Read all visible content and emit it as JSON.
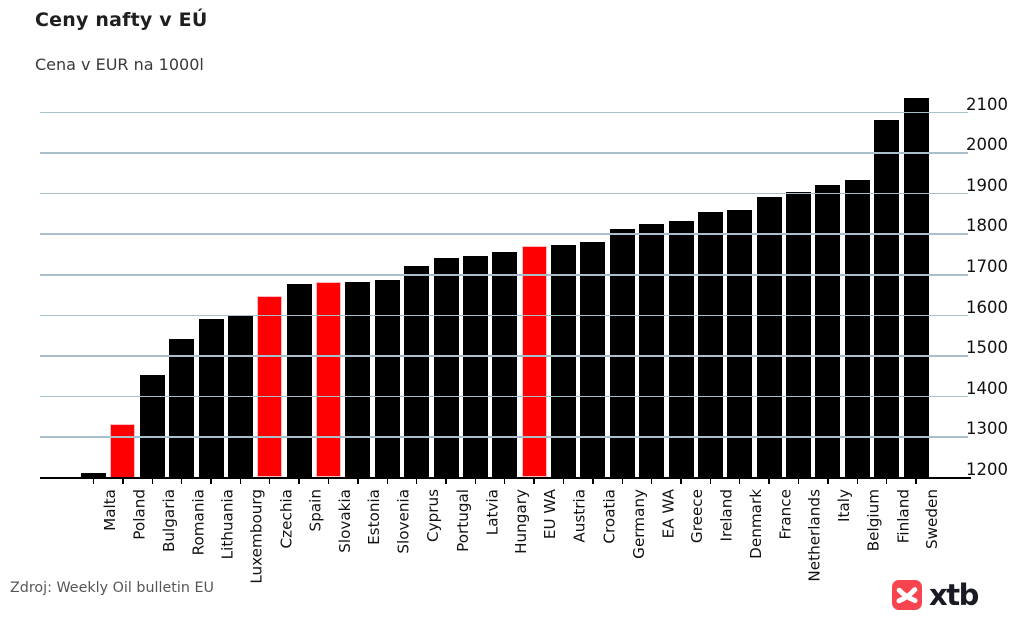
{
  "page": {
    "title": "Ceny nafty v EÚ",
    "subtitle": "Cena v EUR na 1000l",
    "source": "Zdroj: Weekly Oil bulletin EU",
    "brand": "xtb"
  },
  "colors": {
    "bar": "#000000",
    "highlight_bar": "#fe0000",
    "highlight_edge": "#ffbcc6",
    "gridline": "#a9bfca",
    "axis": "#000000",
    "brand_red": "#f7444e",
    "brand_text": "#181b22",
    "text": "#111111",
    "muted_text": "#575757"
  },
  "chart_data": {
    "type": "bar",
    "title": "Ceny nafty v EÚ",
    "subtitle": "Cena v EUR na 1000l",
    "xlabel": "",
    "ylabel": "Cena v EUR na 1000l",
    "categories": [
      "Malta",
      "Poland",
      "Bulgaria",
      "Romania",
      "Lithuania",
      "Luxembourg",
      "Czechia",
      "Spain",
      "Slovakia",
      "Estonia",
      "Slovenia",
      "Cyprus",
      "Portugal",
      "Latvia",
      "Hungary",
      "EU WA",
      "Austria",
      "Croatia",
      "Germany",
      "EA WA",
      "Greece",
      "Ireland",
      "Denmark",
      "France",
      "Netherlands",
      "Italy",
      "Belgium",
      "Finland",
      "Sweden"
    ],
    "values": [
      1212,
      1332,
      1452,
      1541,
      1590,
      1602,
      1648,
      1678,
      1681,
      1683,
      1687,
      1721,
      1742,
      1746,
      1756,
      1771,
      1774,
      1780,
      1812,
      1824,
      1832,
      1856,
      1860,
      1891,
      1903,
      1921,
      1934,
      2081,
      2136
    ],
    "highlighted_categories": [
      "Poland",
      "Czechia",
      "Slovakia",
      "EU WA"
    ],
    "y_ticks": [
      1200,
      1300,
      1400,
      1500,
      1600,
      1700,
      1800,
      1900,
      2000,
      2100
    ],
    "ylim": [
      1200,
      2170
    ],
    "grid": true,
    "grid_over_bars": true,
    "y_axis_side": "right",
    "x_label_rotation": 90,
    "source": "Zdroj: Weekly Oil bulletin EU"
  }
}
